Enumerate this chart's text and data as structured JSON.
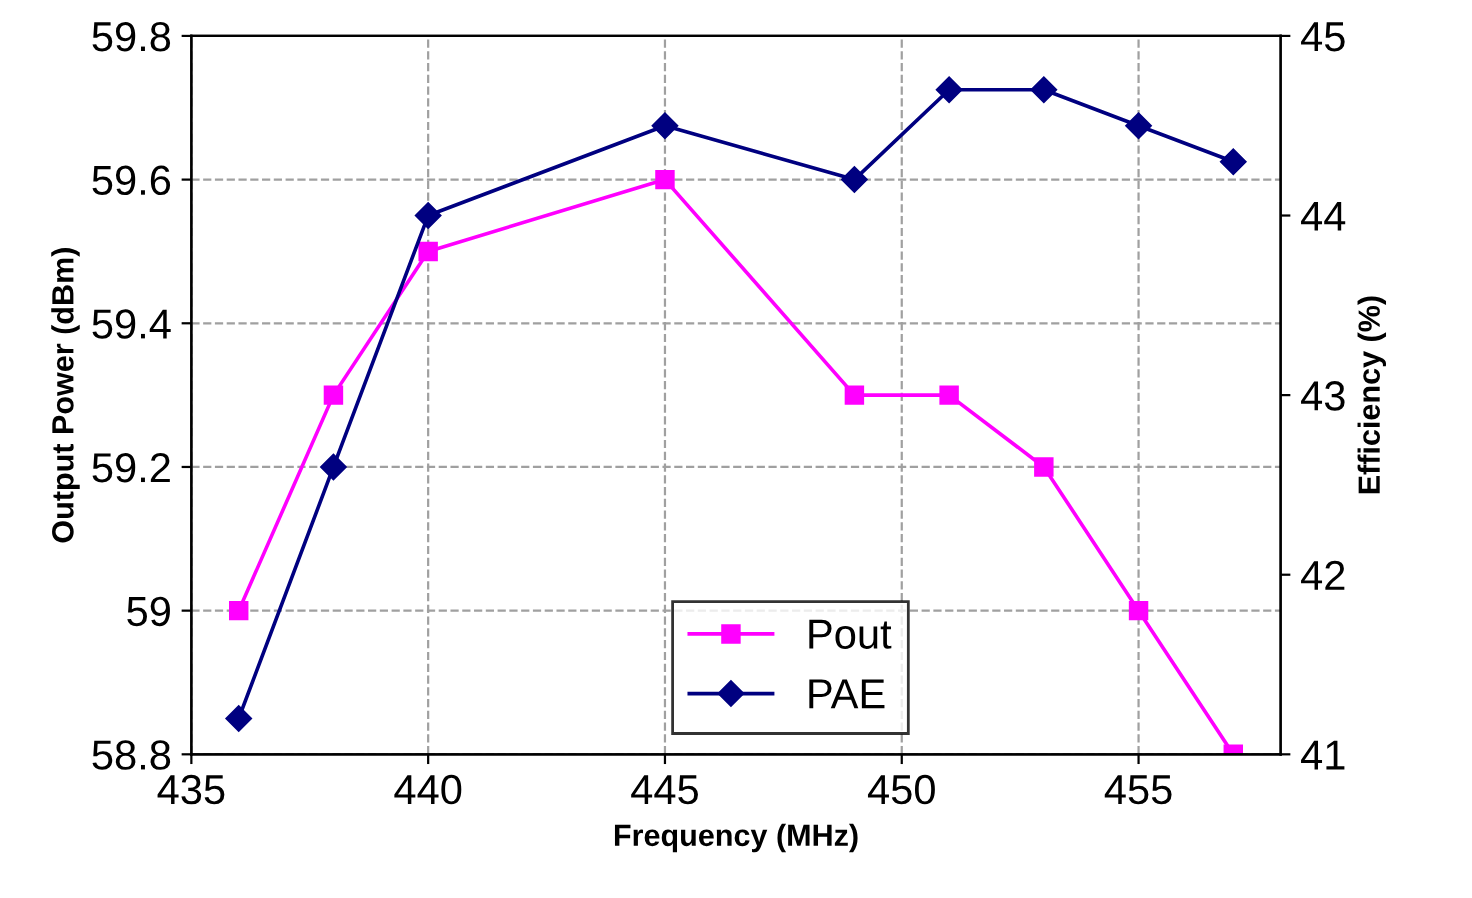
{
  "chart_data": {
    "type": "line",
    "xlabel": "Frequency (MHz)",
    "ylabel": "Output Power (dBm)",
    "y2label": "Efficiency (%)",
    "x": [
      436,
      438,
      440,
      445,
      449,
      451,
      453,
      455,
      457
    ],
    "series": [
      {
        "name": "Pout",
        "color": "#ff00ff",
        "marker": "square",
        "values": [
          59.0,
          59.3,
          59.5,
          59.6,
          59.3,
          59.3,
          59.2,
          59.0,
          58.8
        ]
      },
      {
        "name": "PAE",
        "color": "#000080",
        "marker": "diamond",
        "axis": "y2",
        "values": [
          41.2,
          42.6,
          44.0,
          44.5,
          44.2,
          44.7,
          44.7,
          44.5,
          44.3
        ]
      }
    ],
    "xlim": [
      435,
      458
    ],
    "xticks": [
      435,
      440,
      445,
      450,
      455
    ],
    "ylim": [
      58.8,
      59.8
    ],
    "yticks": [
      {
        "value": 58.8,
        "label": "58.8"
      },
      {
        "value": 59.0,
        "label": "59"
      },
      {
        "value": 59.2,
        "label": "59.2"
      },
      {
        "value": 59.4,
        "label": "59.4"
      },
      {
        "value": 59.6,
        "label": "59.6"
      },
      {
        "value": 59.8,
        "label": "59.8"
      }
    ],
    "y2lim": [
      41,
      45
    ],
    "y2ticks": [
      41,
      42,
      43,
      44,
      45
    ],
    "grid": true,
    "legend": "bottom",
    "line_style": "solid"
  }
}
